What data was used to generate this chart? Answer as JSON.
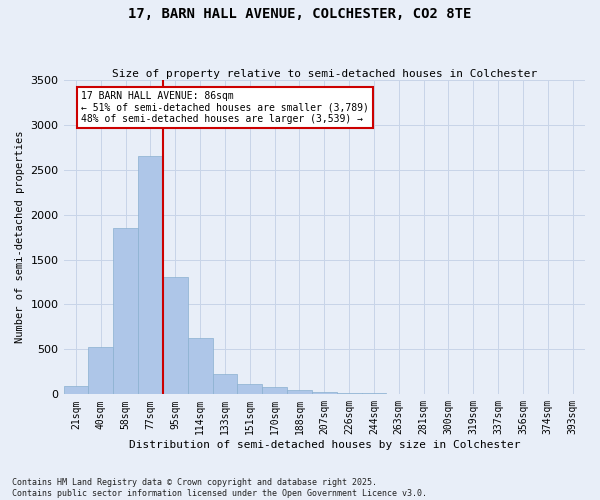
{
  "title_line1": "17, BARN HALL AVENUE, COLCHESTER, CO2 8TE",
  "title_line2": "Size of property relative to semi-detached houses in Colchester",
  "xlabel": "Distribution of semi-detached houses by size in Colchester",
  "ylabel": "Number of semi-detached properties",
  "footnote": "Contains HM Land Registry data © Crown copyright and database right 2025.\nContains public sector information licensed under the Open Government Licence v3.0.",
  "categories": [
    "21sqm",
    "40sqm",
    "58sqm",
    "77sqm",
    "95sqm",
    "114sqm",
    "133sqm",
    "151sqm",
    "170sqm",
    "188sqm",
    "207sqm",
    "226sqm",
    "244sqm",
    "263sqm",
    "281sqm",
    "300sqm",
    "319sqm",
    "337sqm",
    "356sqm",
    "374sqm",
    "393sqm"
  ],
  "values": [
    90,
    530,
    1850,
    2650,
    1310,
    630,
    230,
    120,
    80,
    50,
    30,
    20,
    10,
    5,
    2,
    1,
    1,
    1,
    0,
    0,
    0
  ],
  "bar_color": "#aec6e8",
  "bar_edge_color": "#8ab0d0",
  "property_label": "17 BARN HALL AVENUE: 86sqm",
  "pct_smaller": 51,
  "pct_larger": 48,
  "n_smaller": "3,789",
  "n_larger": "3,539",
  "ylim": [
    0,
    3500
  ],
  "yticks": [
    0,
    500,
    1000,
    1500,
    2000,
    2500,
    3000,
    3500
  ],
  "annotation_box_color": "#ffffff",
  "annotation_box_edge_color": "#cc0000",
  "vline_color": "#cc0000",
  "grid_color": "#c8d4e8",
  "bg_color": "#e8eef8"
}
